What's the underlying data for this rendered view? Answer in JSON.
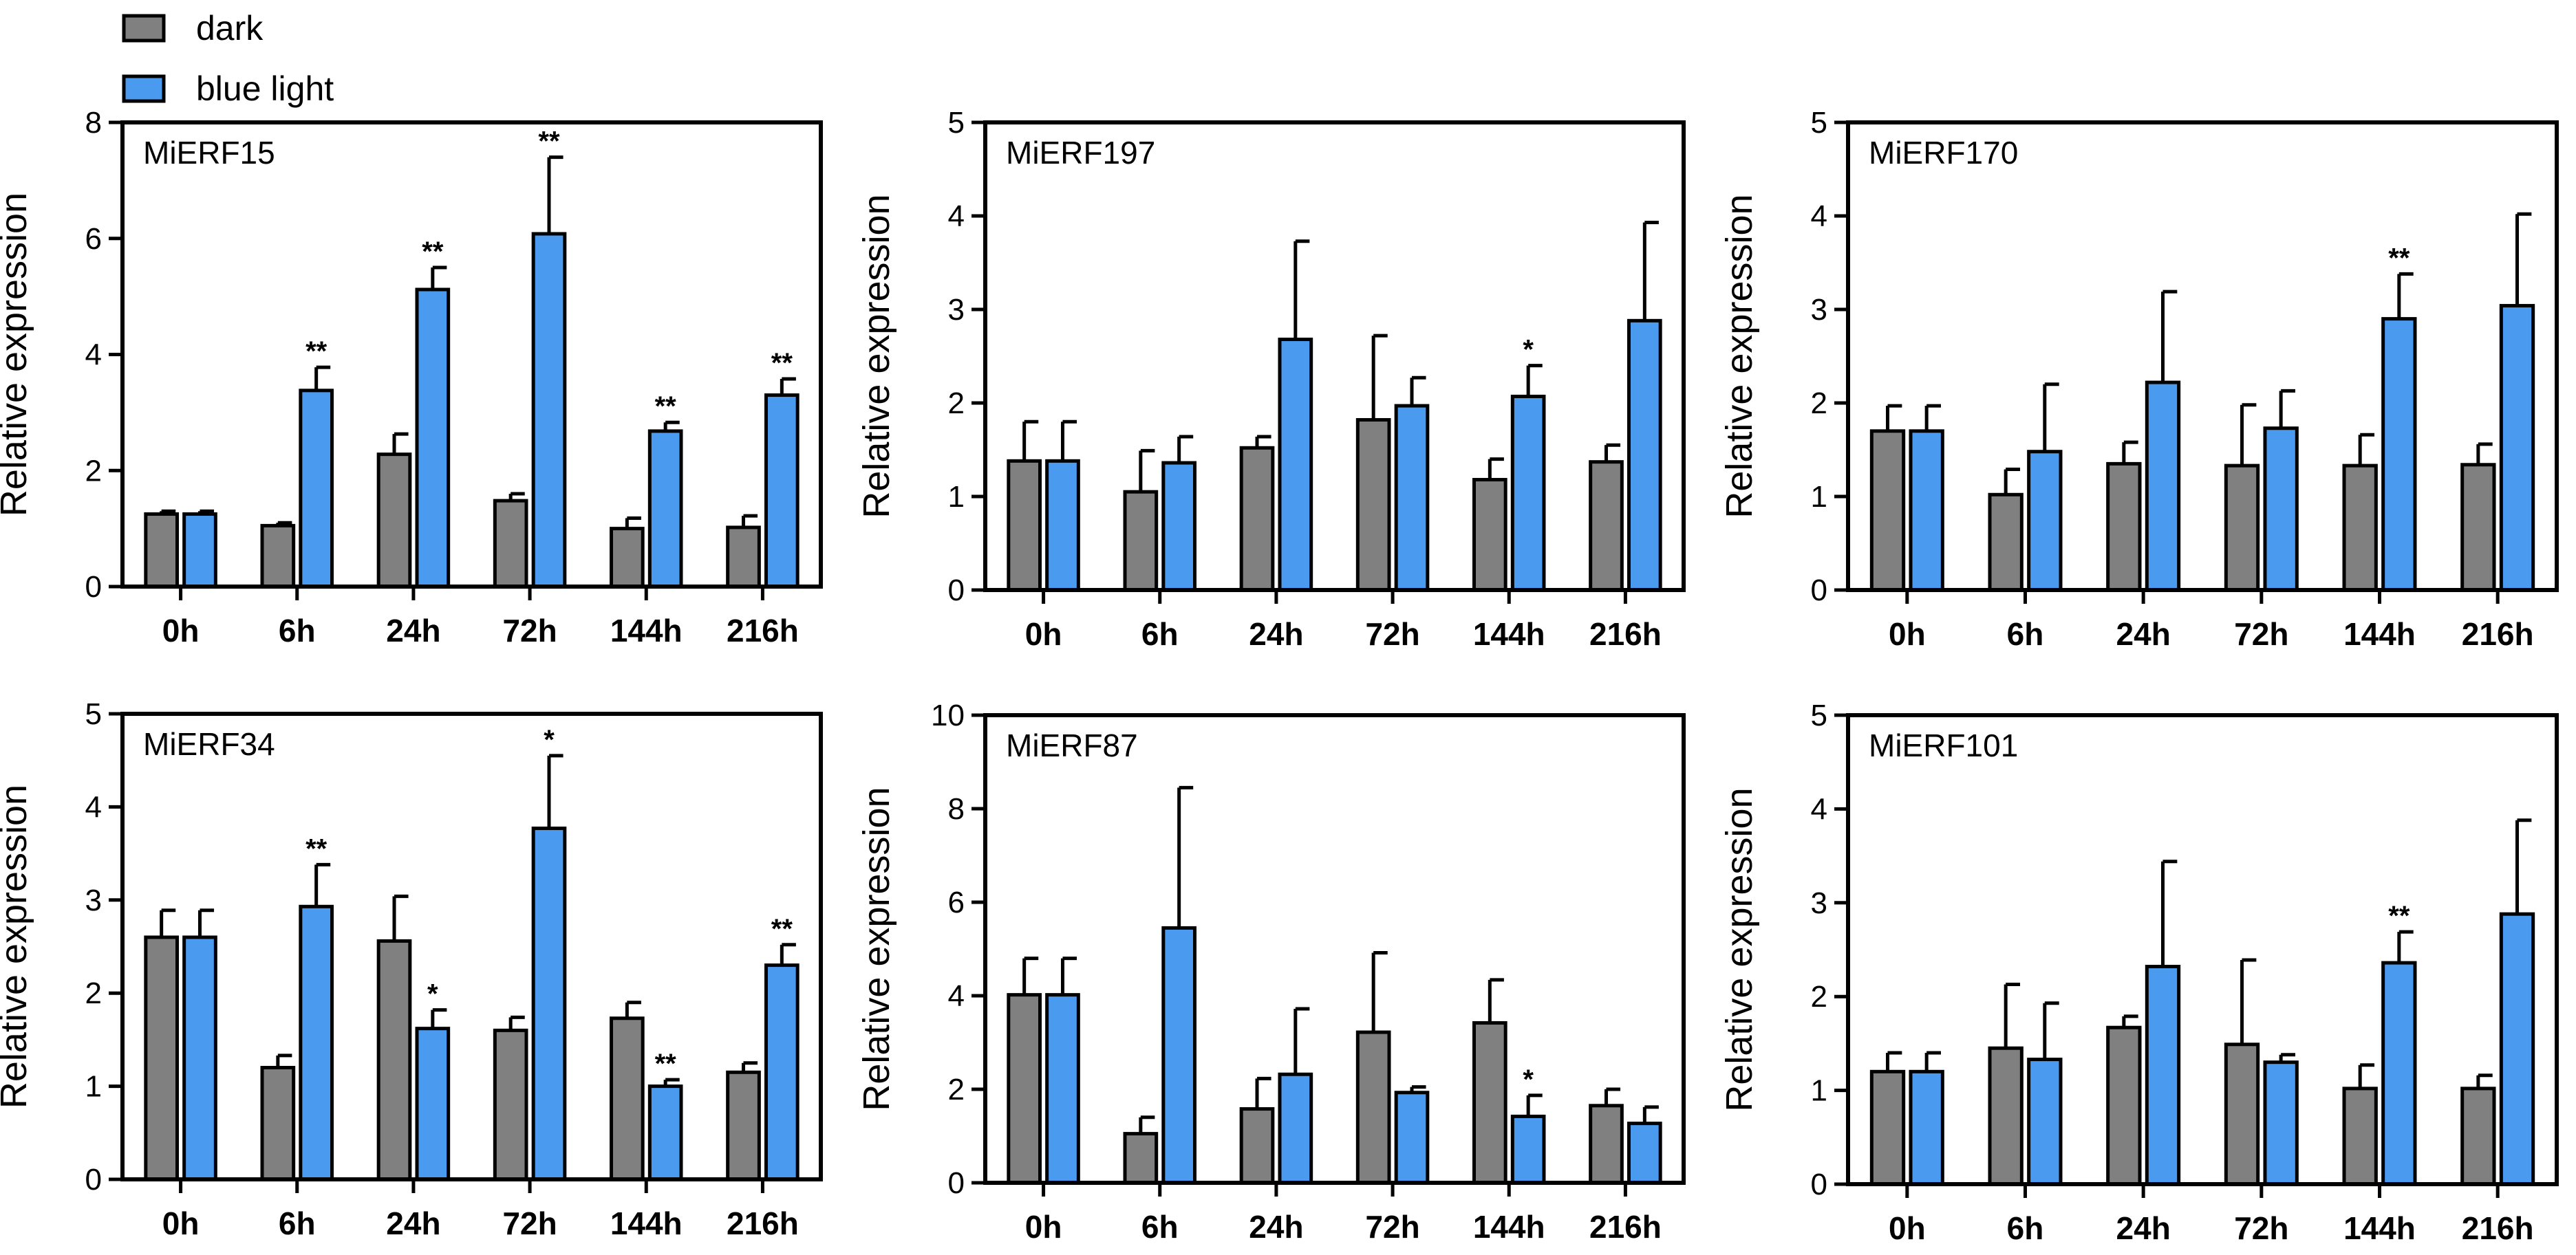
{
  "legend": [
    {
      "label": "dark",
      "color": "#808080"
    },
    {
      "label": "blue light",
      "color": "#4a9bf0"
    }
  ],
  "chart_data": [
    {
      "type": "bar",
      "title": "MiERF15",
      "ylabel": "Relative expression",
      "ylim": [
        0,
        8
      ],
      "yticks": [
        0,
        2,
        4,
        6,
        8
      ],
      "categories": [
        "0h",
        "6h",
        "24h",
        "72h",
        "144h",
        "216h"
      ],
      "series": [
        {
          "name": "dark",
          "values": [
            1.25,
            1.05,
            2.28,
            1.48,
            1.0,
            1.02
          ],
          "errors": [
            0.05,
            0.05,
            0.35,
            0.12,
            0.18,
            0.2
          ]
        },
        {
          "name": "blue light",
          "values": [
            1.25,
            3.38,
            5.12,
            6.08,
            2.68,
            3.3
          ],
          "errors": [
            0.05,
            0.4,
            0.38,
            1.32,
            0.15,
            0.28
          ]
        }
      ],
      "significance": [
        "",
        "**",
        "**",
        "**",
        "**",
        "**"
      ]
    },
    {
      "type": "bar",
      "title": "MiERF197",
      "ylabel": "Relative expression",
      "ylim": [
        0,
        5
      ],
      "yticks": [
        0,
        1,
        2,
        3,
        4,
        5
      ],
      "categories": [
        "0h",
        "6h",
        "24h",
        "72h",
        "144h",
        "216h"
      ],
      "series": [
        {
          "name": "dark",
          "values": [
            1.38,
            1.05,
            1.52,
            1.82,
            1.18,
            1.37
          ],
          "errors": [
            0.42,
            0.44,
            0.12,
            0.9,
            0.22,
            0.18
          ]
        },
        {
          "name": "blue light",
          "values": [
            1.38,
            1.36,
            2.68,
            1.97,
            2.07,
            2.88
          ],
          "errors": [
            0.42,
            0.28,
            1.05,
            0.3,
            0.33,
            1.05
          ]
        }
      ],
      "significance": [
        "",
        "",
        "",
        "",
        "*",
        ""
      ]
    },
    {
      "type": "bar",
      "title": "MiERF170",
      "ylabel": "Relative expression",
      "ylim": [
        0,
        5
      ],
      "yticks": [
        0,
        1,
        2,
        3,
        4,
        5
      ],
      "categories": [
        "0h",
        "6h",
        "24h",
        "72h",
        "144h",
        "216h"
      ],
      "series": [
        {
          "name": "dark",
          "values": [
            1.7,
            1.02,
            1.35,
            1.33,
            1.33,
            1.34
          ],
          "errors": [
            0.27,
            0.27,
            0.23,
            0.65,
            0.33,
            0.22
          ]
        },
        {
          "name": "blue light",
          "values": [
            1.7,
            1.48,
            2.22,
            1.73,
            2.9,
            3.04
          ],
          "errors": [
            0.27,
            0.72,
            0.97,
            0.4,
            0.48,
            0.98
          ]
        }
      ],
      "significance": [
        "",
        "",
        "",
        "",
        "**",
        ""
      ]
    },
    {
      "type": "bar",
      "title": "MiERF34",
      "ylabel": "Relative expression",
      "ylim": [
        0,
        5
      ],
      "yticks": [
        0,
        1,
        2,
        3,
        4,
        5
      ],
      "categories": [
        "0h",
        "6h",
        "24h",
        "72h",
        "144h",
        "216h"
      ],
      "series": [
        {
          "name": "dark",
          "values": [
            2.6,
            1.2,
            2.56,
            1.6,
            1.73,
            1.15
          ],
          "errors": [
            0.29,
            0.13,
            0.48,
            0.14,
            0.17,
            0.1
          ]
        },
        {
          "name": "blue light",
          "values": [
            2.6,
            2.93,
            1.62,
            3.77,
            1.0,
            2.3
          ],
          "errors": [
            0.29,
            0.45,
            0.2,
            0.78,
            0.07,
            0.22
          ]
        }
      ],
      "significance": [
        "",
        "**",
        "*",
        "*",
        "**",
        "**"
      ]
    },
    {
      "type": "bar",
      "title": "MiERF87",
      "ylabel": "Relative expression",
      "ylim": [
        0,
        10
      ],
      "yticks": [
        0,
        2,
        4,
        6,
        8,
        10
      ],
      "categories": [
        "0h",
        "6h",
        "24h",
        "72h",
        "144h",
        "216h"
      ],
      "series": [
        {
          "name": "dark",
          "values": [
            4.02,
            1.05,
            1.58,
            3.22,
            3.42,
            1.65
          ],
          "errors": [
            0.78,
            0.35,
            0.65,
            1.7,
            0.92,
            0.35
          ]
        },
        {
          "name": "blue light",
          "values": [
            4.02,
            5.45,
            2.32,
            1.93,
            1.42,
            1.27
          ],
          "errors": [
            0.78,
            3.0,
            1.4,
            0.12,
            0.45,
            0.35
          ]
        }
      ],
      "significance": [
        "",
        "",
        "",
        "",
        "*",
        ""
      ]
    },
    {
      "type": "bar",
      "title": "MiERF101",
      "ylabel": "Relative expression",
      "ylim": [
        0,
        5
      ],
      "yticks": [
        0,
        1,
        2,
        3,
        4,
        5
      ],
      "categories": [
        "0h",
        "6h",
        "24h",
        "72h",
        "144h",
        "216h"
      ],
      "series": [
        {
          "name": "dark",
          "values": [
            1.2,
            1.45,
            1.67,
            1.49,
            1.02,
            1.02
          ],
          "errors": [
            0.2,
            0.68,
            0.12,
            0.9,
            0.25,
            0.14
          ]
        },
        {
          "name": "blue light",
          "values": [
            1.2,
            1.33,
            2.32,
            1.3,
            2.36,
            2.88
          ],
          "errors": [
            0.2,
            0.6,
            1.12,
            0.08,
            0.33,
            1.0
          ]
        }
      ],
      "significance": [
        "",
        "",
        "",
        "",
        "**",
        ""
      ]
    }
  ]
}
